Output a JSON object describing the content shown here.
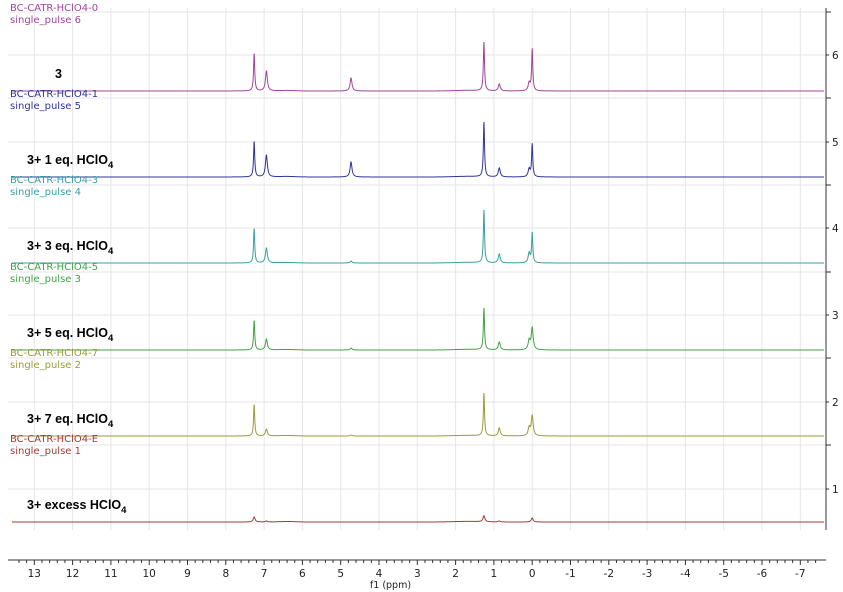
{
  "chart_data": {
    "type": "line",
    "xlabel": "f1 (ppm)",
    "ylabel": "",
    "xlim": [
      13.5,
      -7.5
    ],
    "x_reversed": true,
    "x_ticks": [
      "13",
      "12",
      "11",
      "10",
      "9",
      "8",
      "7",
      "6",
      "5",
      "4",
      "3",
      "2",
      "1",
      "0",
      "-1",
      "-2",
      "-3",
      "-4",
      "-5",
      "-6",
      "-7"
    ],
    "y_ticks": [
      "6",
      "5",
      "4",
      "3",
      "2",
      "1"
    ],
    "grid": true,
    "series": [
      {
        "name": "BC-CATR-HClO4-0",
        "subtitle": "single_pulse 6",
        "condition_prefix": "3",
        "condition_suffix": "",
        "condition_subscript": "",
        "color": "#a0459a",
        "peaks": [
          [
            7.26,
            38
          ],
          [
            6.94,
            20
          ],
          [
            4.73,
            13
          ],
          [
            1.26,
            49
          ],
          [
            0.86,
            7
          ],
          [
            0.08,
            8
          ],
          [
            0.0,
            42
          ]
        ]
      },
      {
        "name": "BC-CATR-HClO4-1",
        "subtitle": "single_pulse 5",
        "condition_prefix": "3+ 1 eq. HClO",
        "condition_suffix": "",
        "condition_subscript": "4",
        "color": "#2f3596",
        "peaks": [
          [
            7.26,
            36
          ],
          [
            6.94,
            22
          ],
          [
            4.73,
            15
          ],
          [
            1.26,
            55
          ],
          [
            0.86,
            9
          ],
          [
            0.08,
            8
          ],
          [
            0.0,
            33
          ]
        ]
      },
      {
        "name": "BC-CATR-HClO4-3",
        "subtitle": "single_pulse 4",
        "condition_prefix": "3+ 3 eq. HClO",
        "condition_suffix": "",
        "condition_subscript": "4",
        "color": "#3a9fa0",
        "peaks": [
          [
            7.26,
            35
          ],
          [
            6.94,
            15
          ],
          [
            4.73,
            2
          ],
          [
            1.26,
            53
          ],
          [
            0.86,
            9
          ],
          [
            0.08,
            10
          ],
          [
            0.0,
            30
          ]
        ]
      },
      {
        "name": "BC-CATR-HClO4-5",
        "subtitle": "single_pulse 3",
        "condition_prefix": "3+ 5 eq. HClO",
        "condition_suffix": "",
        "condition_subscript": "4",
        "color": "#43a047",
        "peaks": [
          [
            7.26,
            30
          ],
          [
            6.94,
            11
          ],
          [
            4.73,
            2
          ],
          [
            1.26,
            42
          ],
          [
            0.86,
            8
          ],
          [
            0.08,
            9
          ],
          [
            0.0,
            22
          ]
        ]
      },
      {
        "name": "BC-CATR-HClO4-7",
        "subtitle": "single_pulse 2",
        "condition_prefix": "3+ 7 eq. HClO",
        "condition_suffix": "",
        "condition_subscript": "4",
        "color": "#9a9b3c",
        "peaks": [
          [
            7.26,
            32
          ],
          [
            6.94,
            7
          ],
          [
            4.73,
            1
          ],
          [
            1.26,
            43
          ],
          [
            0.86,
            8
          ],
          [
            0.08,
            8
          ],
          [
            0.0,
            20
          ]
        ]
      },
      {
        "name": "BC-CATR-HClO4-E",
        "subtitle": "single_pulse 1",
        "condition_prefix": "3+ excess HClO",
        "condition_suffix": "",
        "condition_subscript": "4",
        "color": "#a33a3a",
        "peaks": [
          [
            7.26,
            5
          ],
          [
            6.94,
            1
          ],
          [
            1.26,
            6
          ],
          [
            0.86,
            1
          ],
          [
            0.0,
            4
          ]
        ]
      }
    ]
  }
}
